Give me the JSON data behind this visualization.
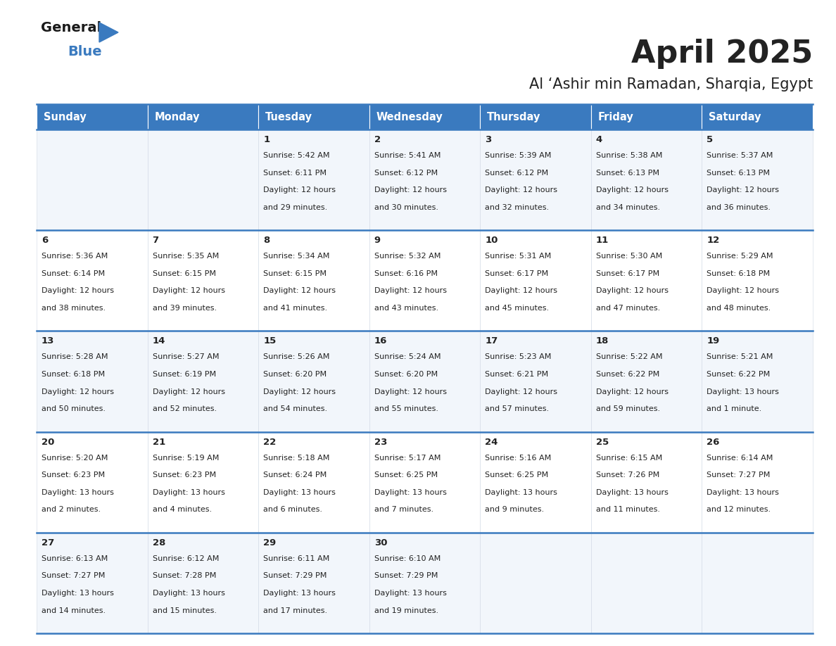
{
  "title": "April 2025",
  "subtitle": "Al ‘Ashir min Ramadan, Sharqia, Egypt",
  "header_bg": "#3a7abf",
  "header_text_color": "#ffffff",
  "cell_bg_odd": "#f2f6fb",
  "cell_bg_even": "#ffffff",
  "border_color": "#3a7abf",
  "text_color": "#222222",
  "days_of_week": [
    "Sunday",
    "Monday",
    "Tuesday",
    "Wednesday",
    "Thursday",
    "Friday",
    "Saturday"
  ],
  "calendar_data": [
    [
      "",
      "",
      "1",
      "2",
      "3",
      "4",
      "5"
    ],
    [
      "6",
      "7",
      "8",
      "9",
      "10",
      "11",
      "12"
    ],
    [
      "13",
      "14",
      "15",
      "16",
      "17",
      "18",
      "19"
    ],
    [
      "20",
      "21",
      "22",
      "23",
      "24",
      "25",
      "26"
    ],
    [
      "27",
      "28",
      "29",
      "30",
      "",
      "",
      ""
    ]
  ],
  "cell_data": {
    "1": {
      "sunrise": "5:42 AM",
      "sunset": "6:11 PM",
      "daylight": "12 hours",
      "daylight2": "and 29 minutes."
    },
    "2": {
      "sunrise": "5:41 AM",
      "sunset": "6:12 PM",
      "daylight": "12 hours",
      "daylight2": "and 30 minutes."
    },
    "3": {
      "sunrise": "5:39 AM",
      "sunset": "6:12 PM",
      "daylight": "12 hours",
      "daylight2": "and 32 minutes."
    },
    "4": {
      "sunrise": "5:38 AM",
      "sunset": "6:13 PM",
      "daylight": "12 hours",
      "daylight2": "and 34 minutes."
    },
    "5": {
      "sunrise": "5:37 AM",
      "sunset": "6:13 PM",
      "daylight": "12 hours",
      "daylight2": "and 36 minutes."
    },
    "6": {
      "sunrise": "5:36 AM",
      "sunset": "6:14 PM",
      "daylight": "12 hours",
      "daylight2": "and 38 minutes."
    },
    "7": {
      "sunrise": "5:35 AM",
      "sunset": "6:15 PM",
      "daylight": "12 hours",
      "daylight2": "and 39 minutes."
    },
    "8": {
      "sunrise": "5:34 AM",
      "sunset": "6:15 PM",
      "daylight": "12 hours",
      "daylight2": "and 41 minutes."
    },
    "9": {
      "sunrise": "5:32 AM",
      "sunset": "6:16 PM",
      "daylight": "12 hours",
      "daylight2": "and 43 minutes."
    },
    "10": {
      "sunrise": "5:31 AM",
      "sunset": "6:17 PM",
      "daylight": "12 hours",
      "daylight2": "and 45 minutes."
    },
    "11": {
      "sunrise": "5:30 AM",
      "sunset": "6:17 PM",
      "daylight": "12 hours",
      "daylight2": "and 47 minutes."
    },
    "12": {
      "sunrise": "5:29 AM",
      "sunset": "6:18 PM",
      "daylight": "12 hours",
      "daylight2": "and 48 minutes."
    },
    "13": {
      "sunrise": "5:28 AM",
      "sunset": "6:18 PM",
      "daylight": "12 hours",
      "daylight2": "and 50 minutes."
    },
    "14": {
      "sunrise": "5:27 AM",
      "sunset": "6:19 PM",
      "daylight": "12 hours",
      "daylight2": "and 52 minutes."
    },
    "15": {
      "sunrise": "5:26 AM",
      "sunset": "6:20 PM",
      "daylight": "12 hours",
      "daylight2": "and 54 minutes."
    },
    "16": {
      "sunrise": "5:24 AM",
      "sunset": "6:20 PM",
      "daylight": "12 hours",
      "daylight2": "and 55 minutes."
    },
    "17": {
      "sunrise": "5:23 AM",
      "sunset": "6:21 PM",
      "daylight": "12 hours",
      "daylight2": "and 57 minutes."
    },
    "18": {
      "sunrise": "5:22 AM",
      "sunset": "6:22 PM",
      "daylight": "12 hours",
      "daylight2": "and 59 minutes."
    },
    "19": {
      "sunrise": "5:21 AM",
      "sunset": "6:22 PM",
      "daylight": "13 hours",
      "daylight2": "and 1 minute."
    },
    "20": {
      "sunrise": "5:20 AM",
      "sunset": "6:23 PM",
      "daylight": "13 hours",
      "daylight2": "and 2 minutes."
    },
    "21": {
      "sunrise": "5:19 AM",
      "sunset": "6:23 PM",
      "daylight": "13 hours",
      "daylight2": "and 4 minutes."
    },
    "22": {
      "sunrise": "5:18 AM",
      "sunset": "6:24 PM",
      "daylight": "13 hours",
      "daylight2": "and 6 minutes."
    },
    "23": {
      "sunrise": "5:17 AM",
      "sunset": "6:25 PM",
      "daylight": "13 hours",
      "daylight2": "and 7 minutes."
    },
    "24": {
      "sunrise": "5:16 AM",
      "sunset": "6:25 PM",
      "daylight": "13 hours",
      "daylight2": "and 9 minutes."
    },
    "25": {
      "sunrise": "6:15 AM",
      "sunset": "7:26 PM",
      "daylight": "13 hours",
      "daylight2": "and 11 minutes."
    },
    "26": {
      "sunrise": "6:14 AM",
      "sunset": "7:27 PM",
      "daylight": "13 hours",
      "daylight2": "and 12 minutes."
    },
    "27": {
      "sunrise": "6:13 AM",
      "sunset": "7:27 PM",
      "daylight": "13 hours",
      "daylight2": "and 14 minutes."
    },
    "28": {
      "sunrise": "6:12 AM",
      "sunset": "7:28 PM",
      "daylight": "13 hours",
      "daylight2": "and 15 minutes."
    },
    "29": {
      "sunrise": "6:11 AM",
      "sunset": "7:29 PM",
      "daylight": "13 hours",
      "daylight2": "and 17 minutes."
    },
    "30": {
      "sunrise": "6:10 AM",
      "sunset": "7:29 PM",
      "daylight": "13 hours",
      "daylight2": "and 19 minutes."
    }
  }
}
